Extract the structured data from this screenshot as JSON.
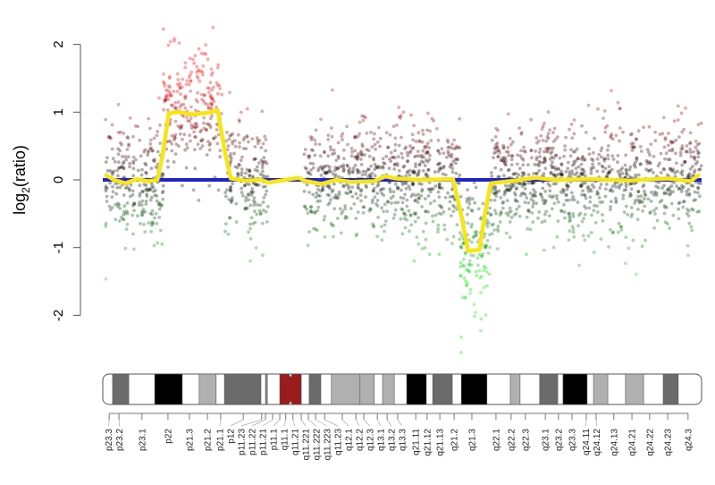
{
  "chart_data": {
    "type": "scatter",
    "title": "",
    "xlabel": "",
    "ylabel": {
      "base": "log",
      "sub": "2",
      "rest": "(ratio)"
    },
    "ylim": [
      -2,
      2
    ],
    "yticks": [
      2,
      1,
      0,
      -1,
      -2
    ],
    "ytick_labels": [
      "2",
      "1",
      "0",
      "-1",
      "-2"
    ],
    "x_units": "Mb",
    "xlim": [
      0,
      159
    ],
    "grid": false,
    "baseline": {
      "value": 0,
      "color": "#1f1fe0"
    },
    "segmentation": {
      "color": "#f5e614",
      "points": [
        [
          0.5,
          0.08
        ],
        [
          3,
          0.0
        ],
        [
          6,
          -0.05
        ],
        [
          9,
          0.01
        ],
        [
          12,
          -0.02
        ],
        [
          14.5,
          0.0
        ],
        [
          16,
          0.4
        ],
        [
          17.5,
          0.98
        ],
        [
          20,
          1.0
        ],
        [
          24,
          0.97
        ],
        [
          28,
          0.99
        ],
        [
          30.5,
          1.03
        ],
        [
          32.5,
          0.4
        ],
        [
          34,
          0.02
        ],
        [
          38,
          -0.01
        ],
        [
          42,
          0.0
        ],
        [
          44,
          -0.04
        ],
        [
          52,
          0.03
        ],
        [
          54,
          -0.02
        ],
        [
          58,
          -0.06
        ],
        [
          62,
          0.0
        ],
        [
          66,
          -0.03
        ],
        [
          72,
          -0.02
        ],
        [
          75,
          0.05
        ],
        [
          78,
          0.02
        ],
        [
          84,
          0.0
        ],
        [
          93,
          0.01
        ],
        [
          95.5,
          -0.6
        ],
        [
          97,
          -1.05
        ],
        [
          100,
          -1.03
        ],
        [
          101.5,
          -0.5
        ],
        [
          103,
          -0.05
        ],
        [
          108,
          -0.02
        ],
        [
          115,
          0.03
        ],
        [
          120,
          0.0
        ],
        [
          130,
          0.01
        ],
        [
          140,
          -0.01
        ],
        [
          150,
          0.02
        ],
        [
          156,
          -0.02
        ],
        [
          158.5,
          0.08
        ]
      ]
    },
    "probe_segments": [
      {
        "start": 0.7,
        "end": 16.1,
        "mean": 0.0,
        "sd": 0.42
      },
      {
        "start": 16.1,
        "end": 31.6,
        "mean": 1.0,
        "sd": 0.45
      },
      {
        "start": 32.5,
        "end": 43.9,
        "mean": 0.0,
        "sd": 0.42
      },
      {
        "start": 53.4,
        "end": 94.9,
        "mean": 0.0,
        "sd": 0.42
      },
      {
        "start": 94.9,
        "end": 102.8,
        "mean": -1.05,
        "sd": 0.45
      },
      {
        "start": 102.8,
        "end": 159.0,
        "mean": 0.0,
        "sd": 0.42
      }
    ],
    "point_colors": {
      "gain": "#ff2020",
      "neutral": "#000000",
      "loss": "#20e020"
    },
    "ideogram": {
      "length": 159,
      "stain_colors": {
        "gpos100": "#000000",
        "gpos75": "#6b6b6b",
        "gpos50": "#8a8a8a",
        "gpos33": "#b0b0b0",
        "acen": "#9b1c1c",
        "gneg": "#ffffff"
      },
      "bands": [
        [
          2.6,
          6.9,
          "gpos75"
        ],
        [
          13.8,
          21.1,
          "gpos100"
        ],
        [
          25.6,
          30.1,
          "gpos33"
        ],
        [
          32.3,
          42.0,
          "gpos75"
        ],
        [
          43.2,
          43.7,
          "gpos50"
        ],
        [
          47.0,
          52.7,
          "acen"
        ],
        [
          54.8,
          57.9,
          "gpos75"
        ],
        [
          60.7,
          68.3,
          "gpos33"
        ],
        [
          68.3,
          72.1,
          "gpos33"
        ],
        [
          74.3,
          77.4,
          "gpos33"
        ],
        [
          80.7,
          85.9,
          "gpos100"
        ],
        [
          87.6,
          92.8,
          "gpos75"
        ],
        [
          95.2,
          102.0,
          "gpos100"
        ],
        [
          108.2,
          110.8,
          "gpos33"
        ],
        [
          116.0,
          120.8,
          "gpos75"
        ],
        [
          122.2,
          128.6,
          "gpos100"
        ],
        [
          130.3,
          134.1,
          "gpos33"
        ],
        [
          138.8,
          143.6,
          "gpos33"
        ],
        [
          148.8,
          152.8,
          "gpos75"
        ]
      ]
    },
    "band_ticks": [
      {
        "label": "p23.3",
        "pos": 1.7
      },
      {
        "label": "p23.2",
        "pos": 4.3
      },
      {
        "label": "p23.1",
        "pos": 10.4
      },
      {
        "label": "p22",
        "pos": 17.3
      },
      {
        "label": "p21.3",
        "pos": 23.0
      },
      {
        "label": "p21.2",
        "pos": 27.8
      },
      {
        "label": "p21.1",
        "pos": 31.3
      },
      {
        "label": "p12",
        "pos": 37.3
      },
      {
        "label": "p11.23",
        "pos": 42.2
      },
      {
        "label": "p11.22",
        "pos": 43.2
      },
      {
        "label": "p11.21",
        "pos": 45.1
      },
      {
        "label": "p11.1",
        "pos": 47.0
      },
      {
        "label": "q11.1",
        "pos": 48.6
      },
      {
        "label": "q11.21",
        "pos": 50.5
      },
      {
        "label": "q11.221",
        "pos": 52.7
      },
      {
        "label": "q11.222",
        "pos": 54.6
      },
      {
        "label": "q11.223",
        "pos": 56.5
      },
      {
        "label": "q11.23",
        "pos": 58.9
      },
      {
        "label": "q12.1",
        "pos": 63.6
      },
      {
        "label": "q12.2",
        "pos": 67.2
      },
      {
        "label": "q12.3",
        "pos": 69.3
      },
      {
        "label": "q13.1",
        "pos": 72.9
      },
      {
        "label": "q13.2",
        "pos": 75.5
      },
      {
        "label": "q13.3",
        "pos": 78.3
      },
      {
        "label": "q21.11",
        "pos": 83.1
      },
      {
        "label": "q21.12",
        "pos": 86.1
      },
      {
        "label": "q21.13",
        "pos": 89.5
      },
      {
        "label": "q21.2",
        "pos": 93.3
      },
      {
        "label": "q21.3",
        "pos": 98.0
      },
      {
        "label": "q22.1",
        "pos": 104.4
      },
      {
        "label": "q22.2",
        "pos": 108.4
      },
      {
        "label": "q22.3",
        "pos": 112.2
      },
      {
        "label": "q23.1",
        "pos": 117.5
      },
      {
        "label": "q23.2",
        "pos": 121.0
      },
      {
        "label": "q23.3",
        "pos": 124.6
      },
      {
        "label": "q24.11",
        "pos": 128.4
      },
      {
        "label": "q24.12",
        "pos": 131.0
      },
      {
        "label": "q24.13",
        "pos": 135.7
      },
      {
        "label": "q24.21",
        "pos": 140.5
      },
      {
        "label": "q24.22",
        "pos": 145.2
      },
      {
        "label": "q24.23",
        "pos": 150.0
      },
      {
        "label": "q24.3",
        "pos": 155.4
      }
    ]
  }
}
